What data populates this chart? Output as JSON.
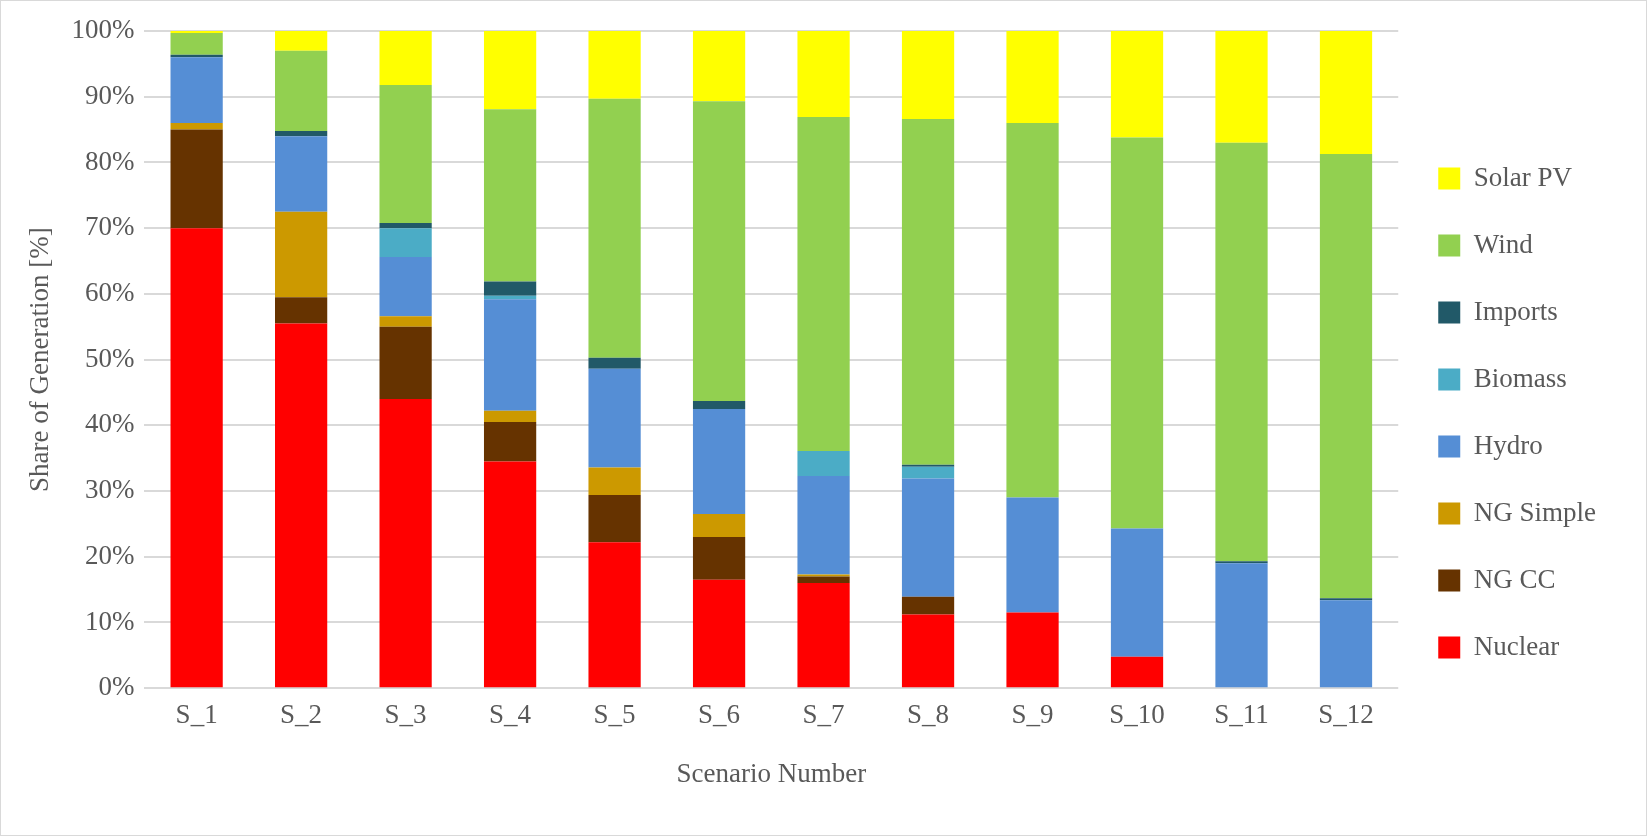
{
  "chart_data": {
    "type": "bar",
    "stacked": true,
    "xlabel": "Scenario Number",
    "ylabel": "Share of Generation [%]",
    "categories": [
      "S_1",
      "S_2",
      "S_3",
      "S_4",
      "S_5",
      "S_6",
      "S_7",
      "S_8",
      "S_9",
      "S_10",
      "S_11",
      "S_12"
    ],
    "series": [
      {
        "name": "Nuclear",
        "color": "#ff0000",
        "values": [
          70,
          55.5,
          44,
          34.5,
          22.2,
          16.5,
          16,
          11.2,
          11.5,
          4.8,
          0,
          0
        ]
      },
      {
        "name": "NG CC",
        "color": "#663300",
        "values": [
          15,
          4,
          11,
          6,
          7.2,
          6.5,
          1,
          2.7,
          0,
          0,
          0,
          0
        ]
      },
      {
        "name": "NG Simple",
        "color": "#cc9900",
        "values": [
          1,
          13,
          1.6,
          1.7,
          4.2,
          3.5,
          0.3,
          0,
          0,
          0,
          0,
          0
        ]
      },
      {
        "name": "Hydro",
        "color": "#558ed5",
        "values": [
          10,
          11.5,
          9,
          17,
          15,
          16,
          15,
          18,
          17.5,
          19.5,
          19,
          13.4
        ]
      },
      {
        "name": "Biomass",
        "color": "#4bacc6",
        "values": [
          0,
          0,
          4.4,
          0.5,
          0,
          0,
          3.8,
          1.8,
          0,
          0,
          0,
          0
        ]
      },
      {
        "name": "Imports",
        "color": "#215968",
        "values": [
          0.4,
          0.8,
          0.8,
          2.2,
          1.7,
          1.2,
          0,
          0.3,
          0,
          0,
          0.3,
          0.3
        ]
      },
      {
        "name": "Wind",
        "color": "#92d050",
        "values": [
          3.3,
          12.2,
          21,
          26.2,
          39.4,
          45.6,
          50.8,
          52.6,
          57,
          59.5,
          63.7,
          67.6
        ]
      },
      {
        "name": "Solar PV",
        "color": "#ffff00",
        "values": [
          0.3,
          3,
          8.2,
          11.9,
          10.3,
          10.7,
          13.1,
          13.4,
          14,
          16.2,
          17,
          18.7
        ]
      }
    ],
    "ylim": [
      0,
      100
    ],
    "yticks": [
      {
        "value": 0,
        "label": "0%"
      },
      {
        "value": 10,
        "label": "10%"
      },
      {
        "value": 20,
        "label": "20%"
      },
      {
        "value": 30,
        "label": "30%"
      },
      {
        "value": 40,
        "label": "40%"
      },
      {
        "value": 50,
        "label": "50%"
      },
      {
        "value": 60,
        "label": "60%"
      },
      {
        "value": 70,
        "label": "70%"
      },
      {
        "value": 80,
        "label": "80%"
      },
      {
        "value": 90,
        "label": "90%"
      },
      {
        "value": 100,
        "label": "100%"
      }
    ],
    "grid": "y",
    "legend": "right"
  }
}
